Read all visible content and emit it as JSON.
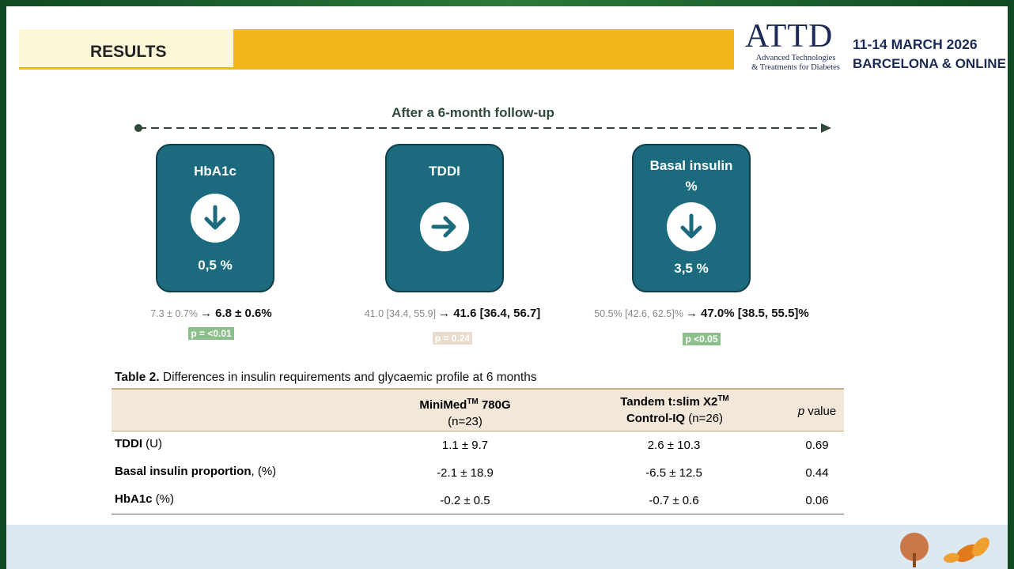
{
  "header": {
    "title": "RESULTS"
  },
  "logo": {
    "name": "ATTD",
    "line1": "Advanced Technologies",
    "line2": "& Treatments for Diabetes",
    "dates": "11-14 MARCH 2026",
    "location": "BARCELONA & ONLINE"
  },
  "timeline": {
    "label": "After a 6-month follow-up"
  },
  "cards": [
    {
      "title": [
        "HbA1c"
      ],
      "icon": "down",
      "change": "0,5 %",
      "baseline": "7.3  ± 0.7%",
      "followup": "→ 6.8 ± 0.6%",
      "p": "p = <0.01",
      "p_color": "#8cbf8c"
    },
    {
      "title": [
        "TDDI"
      ],
      "icon": "right",
      "change": null,
      "baseline": "41.0 [34.4, 55.9]",
      "followup": "→ 41.6 [36.4, 56.7]",
      "p": "p = 0.24",
      "p_color": "#e9dccf"
    },
    {
      "title": [
        "Basal insulin",
        "%"
      ],
      "icon": "down",
      "change": "3,5 %",
      "baseline": "50.5% [42.6, 62.5]%",
      "followup": "→ 47.0% [38.5, 55.5]%",
      "p": "p <0.05",
      "p_color": "#8cbf8c"
    }
  ],
  "table": {
    "caption_label": "Table 2.",
    "caption": " Differences in insulin requirements and glycaemic profile at 6 months",
    "columns": [
      {
        "name": "MiniMed",
        "sup": "TM",
        "name_rest": " 780G",
        "n": "(n=23)"
      },
      {
        "name": "Tandem  t:slim X2",
        "sup": "TM",
        "name_rest": "Control-IQ",
        "n": " (n=26)"
      },
      {
        "italic": "p",
        "rest": " value"
      }
    ],
    "rows": [
      {
        "label": "TDDI",
        "unit": " (U)",
        "cells": [
          "1.1  ± 9.7",
          "2.6  ± 10.3",
          "0.69"
        ]
      },
      {
        "label": "Basal insulin proportion",
        "unit": ", (%)",
        "cells": [
          "-2.1 ± 18.9",
          "-6.5 ± 12.5",
          "0.44"
        ]
      },
      {
        "label": "HbA1c",
        "unit": " (%)",
        "cells": [
          "-0.2 ± 0.5",
          "-0.7 ± 0.6",
          "0.06"
        ]
      }
    ]
  }
}
